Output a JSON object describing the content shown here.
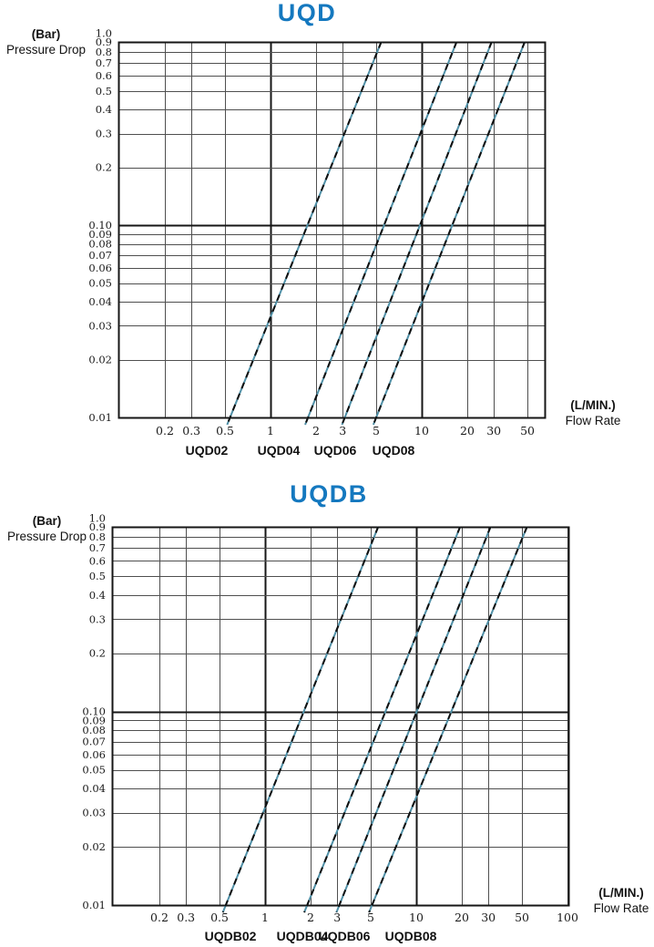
{
  "colors": {
    "title_blue": "#1478BF",
    "text": "#121212",
    "grid": "#4f4f4f",
    "grid_bold": "#161616",
    "plot_border": "#161616",
    "curve_teal": "#4F8FA6",
    "curve_dash": "#0F0F0F",
    "background": "#FFFFFF"
  },
  "charts": [
    {
      "title": "UQD",
      "y_unit": "(Bar)",
      "y_name": "Pressure Drop",
      "x_unit": "(L/MIN.)",
      "x_name": "Flow Rate"
    },
    {
      "title": "UQDB",
      "y_unit": "(Bar)",
      "y_name": "Pressure Drop",
      "x_unit": "(L/MIN.)",
      "x_name": "Flow Rate"
    }
  ],
  "chart_data": [
    {
      "type": "line",
      "title": "UQD",
      "xlabel": "Flow Rate (L/MIN.)",
      "ylabel": "Pressure Drop (Bar)",
      "x_scale": "log",
      "y_scale": "log",
      "xlim": [
        0.1,
        65
      ],
      "ylim": [
        0.01,
        0.9
      ],
      "grid": true,
      "x_tick_values": [
        0.2,
        0.3,
        0.5,
        1,
        2,
        3,
        5,
        10,
        20,
        30,
        50
      ],
      "x_tick_labels": [
        "0.2",
        "0.3",
        "0.5",
        "1",
        "2",
        "3",
        "5",
        "10",
        "20",
        "30",
        "50"
      ],
      "y_tick_values": [
        1.0,
        0.9,
        0.8,
        0.7,
        0.6,
        0.5,
        0.4,
        0.3,
        0.2,
        0.1,
        0.09,
        0.08,
        0.07,
        0.06,
        0.05,
        0.04,
        0.03,
        0.02,
        0.01
      ],
      "y_tick_labels": [
        "1.0",
        "0.9",
        "0.8",
        "0.7",
        "0.6",
        "0.5",
        "0.4",
        "0.3",
        "0.2",
        "0.10",
        "0.09",
        "0.08",
        "0.07",
        "0.06",
        "0.05",
        "0.04",
        "0.03",
        "0.02",
        "0.01"
      ],
      "bold_x_values": [
        1,
        10
      ],
      "bold_y_values": [
        0.1
      ],
      "series": [
        {
          "name": "UQD02",
          "points": [
            [
              0.54,
              0.01
            ],
            [
              5.4,
              0.9
            ]
          ]
        },
        {
          "name": "UQD04",
          "points": [
            [
              1.77,
              0.01
            ],
            [
              17.0,
              0.9
            ]
          ]
        },
        {
          "name": "UQD06",
          "points": [
            [
              3.1,
              0.01
            ],
            [
              29.0,
              0.9
            ]
          ]
        },
        {
          "name": "UQD08",
          "points": [
            [
              5.0,
              0.01
            ],
            [
              48.0,
              0.9
            ]
          ]
        }
      ]
    },
    {
      "type": "line",
      "title": "UQDB",
      "xlabel": "Flow Rate (L/MIN.)",
      "ylabel": "Pressure Drop (Bar)",
      "x_scale": "log",
      "y_scale": "log",
      "xlim": [
        0.1,
        100
      ],
      "ylim": [
        0.01,
        0.9
      ],
      "grid": true,
      "x_tick_values": [
        0.2,
        0.3,
        0.5,
        1,
        2,
        3,
        5,
        10,
        20,
        30,
        50,
        100
      ],
      "x_tick_labels": [
        "0.2",
        "0.3",
        "0.5",
        "1",
        "2",
        "3",
        "5",
        "10",
        "20",
        "30",
        "50",
        "100"
      ],
      "y_tick_values": [
        1.0,
        0.9,
        0.8,
        0.7,
        0.6,
        0.5,
        0.4,
        0.3,
        0.2,
        0.1,
        0.09,
        0.08,
        0.07,
        0.06,
        0.05,
        0.04,
        0.03,
        0.02,
        0.01
      ],
      "y_tick_labels": [
        "1.0",
        "0.9",
        "0.8",
        "0.7",
        "0.6",
        "0.5",
        "0.4",
        "0.3",
        "0.2",
        "0.10",
        "0.09",
        "0.08",
        "0.07",
        "0.06",
        "0.05",
        "0.04",
        "0.03",
        "0.02",
        "0.01"
      ],
      "bold_x_values": [
        1,
        10
      ],
      "bold_y_values": [
        0.1
      ],
      "series": [
        {
          "name": "UQDB02",
          "points": [
            [
              0.55,
              0.01
            ],
            [
              5.6,
              0.9
            ]
          ]
        },
        {
          "name": "UQDB04",
          "points": [
            [
              1.9,
              0.01
            ],
            [
              19.5,
              0.9
            ]
          ]
        },
        {
          "name": "UQDB06",
          "points": [
            [
              3.1,
              0.01
            ],
            [
              31.0,
              0.9
            ]
          ]
        },
        {
          "name": "UQDB08",
          "points": [
            [
              5.1,
              0.01
            ],
            [
              54.0,
              0.9
            ]
          ]
        }
      ]
    }
  ]
}
